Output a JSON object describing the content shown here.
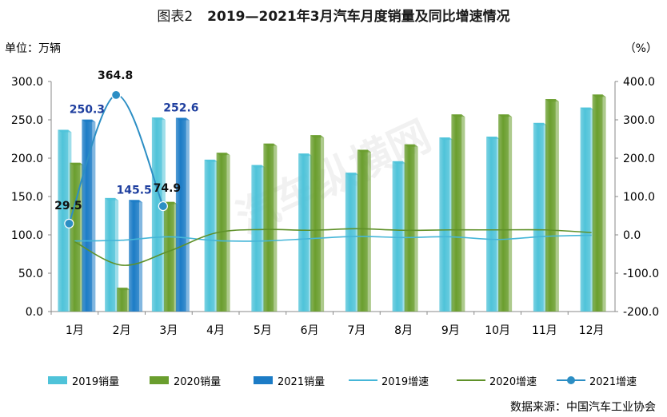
{
  "title_prefix": "图表2",
  "title": "2019—2021年3月汽车月度销量及同比增速情况",
  "unit_left": "单位：万辆",
  "unit_right": "（%）",
  "source": "数据来源：中国汽车工业协会",
  "watermark": "汽车纵横网",
  "colors": {
    "s2019": "#4fc3d9",
    "s2020": "#6a9e2e",
    "s2021": "#1c7cc6",
    "g2019": "#45b6d8",
    "g2020": "#5f9129",
    "g2021": "#2c8ec4"
  },
  "chart_data": {
    "type": "bar",
    "categories": [
      "1月",
      "2月",
      "3月",
      "4月",
      "5月",
      "6月",
      "7月",
      "8月",
      "9月",
      "10月",
      "11月",
      "12月"
    ],
    "y_left": {
      "min": 0,
      "max": 300,
      "ticks": [
        "0.0",
        "50.0",
        "100.0",
        "150.0",
        "200.0",
        "250.0",
        "300.0"
      ]
    },
    "y_right": {
      "min": -200,
      "max": 400,
      "ticks": [
        "-200.0",
        "-100.0",
        "0.0",
        "100.0",
        "200.0",
        "300.0",
        "400.0"
      ]
    },
    "series": [
      {
        "name": "2019销量",
        "kind": "bar",
        "axis": "left",
        "values": [
          237,
          148,
          253,
          198,
          191,
          206,
          181,
          196,
          227,
          228,
          246,
          266
        ]
      },
      {
        "name": "2020销量",
        "kind": "bar",
        "axis": "left",
        "values": [
          194,
          31,
          143,
          207,
          219,
          230,
          211,
          218,
          257,
          257,
          277,
          283
        ]
      },
      {
        "name": "2021销量",
        "kind": "bar",
        "axis": "left",
        "values": [
          250.3,
          145.5,
          252.6,
          null,
          null,
          null,
          null,
          null,
          null,
          null,
          null,
          null
        ]
      },
      {
        "name": "2019增速",
        "kind": "line",
        "axis": "right",
        "values": [
          -16,
          -14,
          -5,
          -15,
          -16,
          -10,
          -4,
          -7,
          -5,
          -12,
          -4,
          -1
        ]
      },
      {
        "name": "2020增速",
        "kind": "line",
        "axis": "right",
        "values": [
          -18,
          -79,
          -43,
          5,
          14,
          12,
          16,
          12,
          13,
          13,
          13,
          6
        ]
      },
      {
        "name": "2021增速",
        "kind": "line",
        "axis": "right",
        "values": [
          29.5,
          364.8,
          74.9,
          null,
          null,
          null,
          null,
          null,
          null,
          null,
          null,
          null
        ]
      }
    ],
    "data_labels": {
      "sales_2021": [
        "250.3",
        "145.5",
        "252.6"
      ],
      "growth_2021": [
        "29.5",
        "364.8",
        "74.9"
      ]
    },
    "grid": false,
    "legend": "bottom"
  }
}
